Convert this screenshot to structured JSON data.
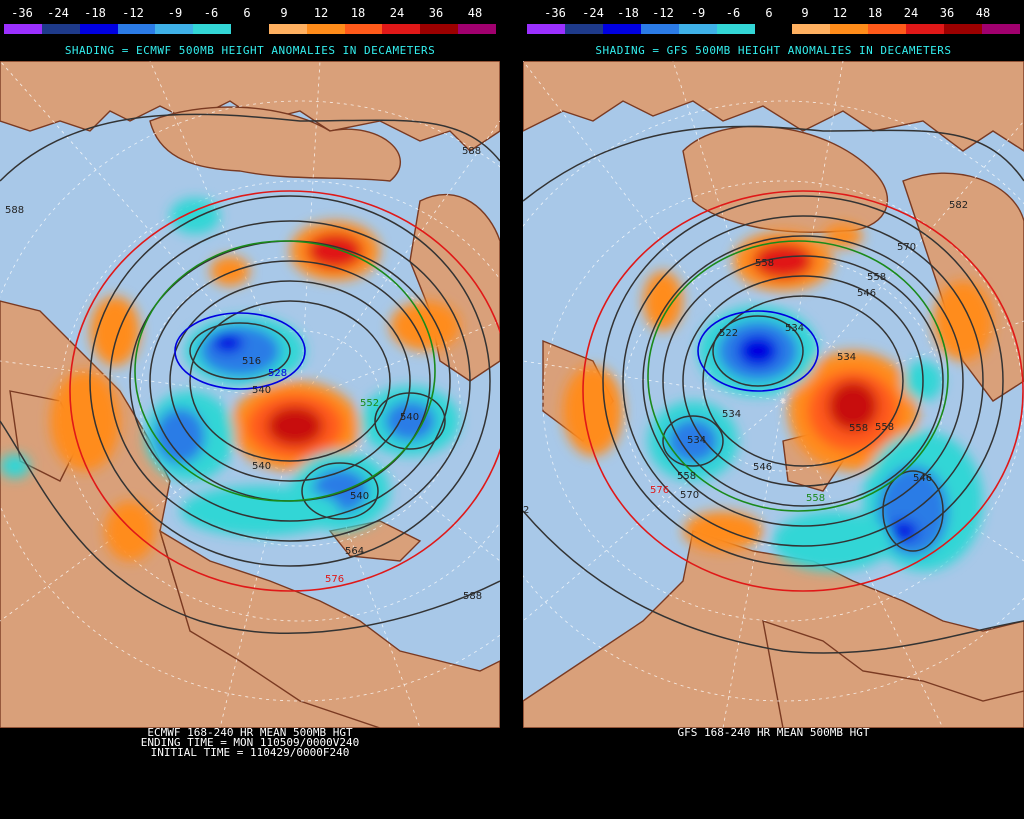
{
  "scale": {
    "labels": [
      "-36",
      "-24",
      "-18",
      "-12",
      "-9",
      "-6",
      "6",
      "9",
      "12",
      "18",
      "24",
      "36",
      "48"
    ],
    "colors": [
      "#9b30ff",
      "#1e3a8a",
      "#0000e0",
      "#2b7be6",
      "#3fb1e8",
      "#33d6d6",
      "#000000",
      "#ffb060",
      "#ff8c1a",
      "#ff5a1a",
      "#e01818",
      "#9b0000",
      "#a0006e"
    ]
  },
  "panels": {
    "left": {
      "shading_title": "SHADING = ECMWF 500MB HEIGHT ANOMALIES IN DECAMETERS",
      "footer_line1": "ECMWF 168-240 HR MEAN 500MB HGT",
      "footer_line2": "ENDING TIME = MON 110509/0000V240",
      "footer_line3": "INITIAL TIME = 110429/0000F240",
      "contour_labels": [
        "588",
        "588",
        "516",
        "528",
        "540",
        "540",
        "552",
        "540",
        "540",
        "564",
        "576",
        "588"
      ]
    },
    "right": {
      "shading_title": "SHADING = GFS 500MB HEIGHT ANOMALIES IN DECAMETERS",
      "footer_line1": "GFS 168-240 HR MEAN 500MB HGT",
      "contour_labels": [
        "582",
        "570",
        "558",
        "546",
        "558",
        "534",
        "522",
        "534",
        "534",
        "534",
        "546",
        "558",
        "558",
        "570",
        "576",
        "546",
        "558",
        "558",
        "2"
      ]
    }
  },
  "map_colors": {
    "ocean": "#a8c8e8",
    "land": "#d9a07a",
    "coast": "#7a3a22",
    "grid": "#ffffff"
  }
}
